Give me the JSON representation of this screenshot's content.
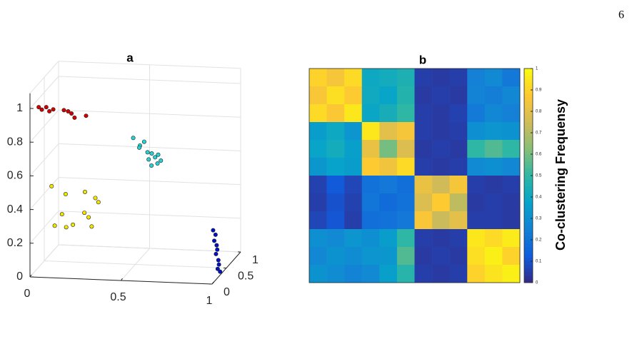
{
  "page_number": "6",
  "chart_data": [
    {
      "type": "scatter3d",
      "title": "a",
      "xlim": [
        0,
        1
      ],
      "ylim": [
        0,
        1
      ],
      "zlim": [
        0,
        1
      ],
      "xticks": [
        0,
        0.5,
        1
      ],
      "yticks": [
        0,
        0.5,
        1
      ],
      "zticks": [
        0,
        0.2,
        0.4,
        0.6,
        0.8,
        1
      ],
      "grid": true,
      "series": [
        {
          "color": "#d40000",
          "x": [
            0.04,
            0.06,
            0.08,
            0.1,
            0.12,
            0.18,
            0.2,
            0.22,
            0.24,
            0.3
          ],
          "y": [
            0.05,
            0.03,
            0.06,
            0.04,
            0.05,
            0.04,
            0.06,
            0.05,
            0.03,
            0.05
          ],
          "z": [
            1.0,
            0.99,
            1.0,
            0.98,
            0.99,
            0.99,
            0.98,
            0.97,
            0.95,
            0.96
          ]
        },
        {
          "color": "#22d4d4",
          "x": [
            0.52,
            0.56,
            0.55,
            0.58,
            0.6,
            0.62,
            0.6,
            0.64,
            0.66,
            0.65,
            0.62,
            0.67
          ],
          "y": [
            0.3,
            0.28,
            0.32,
            0.3,
            0.29,
            0.31,
            0.33,
            0.3,
            0.28,
            0.32,
            0.3,
            0.31
          ],
          "z": [
            0.79,
            0.75,
            0.73,
            0.77,
            0.71,
            0.7,
            0.66,
            0.68,
            0.7,
            0.64,
            0.63,
            0.66
          ]
        },
        {
          "color": "#f2e600",
          "x": [
            0.1,
            0.18,
            0.28,
            0.34,
            0.36,
            0.16,
            0.28,
            0.3,
            0.12,
            0.18,
            0.22,
            0.32
          ],
          "y": [
            0.12,
            0.1,
            0.14,
            0.12,
            0.1,
            0.1,
            0.12,
            0.14,
            0.1,
            0.12,
            0.1,
            0.12
          ],
          "z": [
            0.52,
            0.48,
            0.49,
            0.46,
            0.44,
            0.36,
            0.37,
            0.34,
            0.29,
            0.28,
            0.3,
            0.29
          ]
        },
        {
          "color": "#0010c8",
          "x": [
            0.99,
            1.0,
            0.99,
            1.0,
            1.0,
            0.99,
            1.0,
            1.0,
            0.99,
            1.0
          ],
          "y": [
            0.1,
            0.12,
            0.14,
            0.16,
            0.18,
            0.2,
            0.22,
            0.24,
            0.26,
            0.28
          ],
          "z": [
            0.3,
            0.27,
            0.23,
            0.2,
            0.17,
            0.14,
            0.1,
            0.07,
            0.04,
            0.02
          ]
        }
      ]
    },
    {
      "type": "heatmap",
      "title": "b",
      "values": [
        [
          0.9,
          0.85,
          0.92,
          0.4,
          0.42,
          0.45,
          0.05,
          0.04,
          0.05,
          0.25,
          0.28,
          0.22
        ],
        [
          0.86,
          0.93,
          0.88,
          0.41,
          0.38,
          0.47,
          0.04,
          0.05,
          0.04,
          0.26,
          0.24,
          0.27
        ],
        [
          0.92,
          0.87,
          0.95,
          0.39,
          0.43,
          0.5,
          0.05,
          0.04,
          0.06,
          0.23,
          0.27,
          0.25
        ],
        [
          0.35,
          0.4,
          0.32,
          0.95,
          0.8,
          0.85,
          0.05,
          0.04,
          0.05,
          0.3,
          0.32,
          0.31
        ],
        [
          0.38,
          0.42,
          0.36,
          0.82,
          0.6,
          0.78,
          0.04,
          0.05,
          0.04,
          0.5,
          0.55,
          0.5
        ],
        [
          0.33,
          0.37,
          0.35,
          0.88,
          0.84,
          0.92,
          0.05,
          0.04,
          0.05,
          0.28,
          0.3,
          0.27
        ],
        [
          0.06,
          0.12,
          0.07,
          0.2,
          0.22,
          0.19,
          0.82,
          0.75,
          0.85,
          0.05,
          0.04,
          0.05
        ],
        [
          0.05,
          0.1,
          0.06,
          0.21,
          0.18,
          0.2,
          0.78,
          0.88,
          0.72,
          0.04,
          0.05,
          0.04
        ],
        [
          0.07,
          0.11,
          0.05,
          0.19,
          0.2,
          0.22,
          0.86,
          0.74,
          0.8,
          0.05,
          0.05,
          0.04
        ],
        [
          0.3,
          0.28,
          0.32,
          0.3,
          0.35,
          0.5,
          0.05,
          0.04,
          0.05,
          0.95,
          0.92,
          0.96
        ],
        [
          0.27,
          0.31,
          0.29,
          0.32,
          0.33,
          0.55,
          0.04,
          0.05,
          0.04,
          0.93,
          0.97,
          0.9
        ],
        [
          0.31,
          0.29,
          0.26,
          0.28,
          0.36,
          0.48,
          0.05,
          0.04,
          0.05,
          0.9,
          0.94,
          0.97
        ]
      ],
      "colorbar_label": "Co-clustering Frequensy",
      "clim": [
        0,
        1
      ],
      "cticks": [
        0,
        0.1,
        0.2,
        0.3,
        0.4,
        0.5,
        0.6,
        0.7,
        0.8,
        0.9,
        1
      ],
      "colormap": "parula"
    }
  ]
}
